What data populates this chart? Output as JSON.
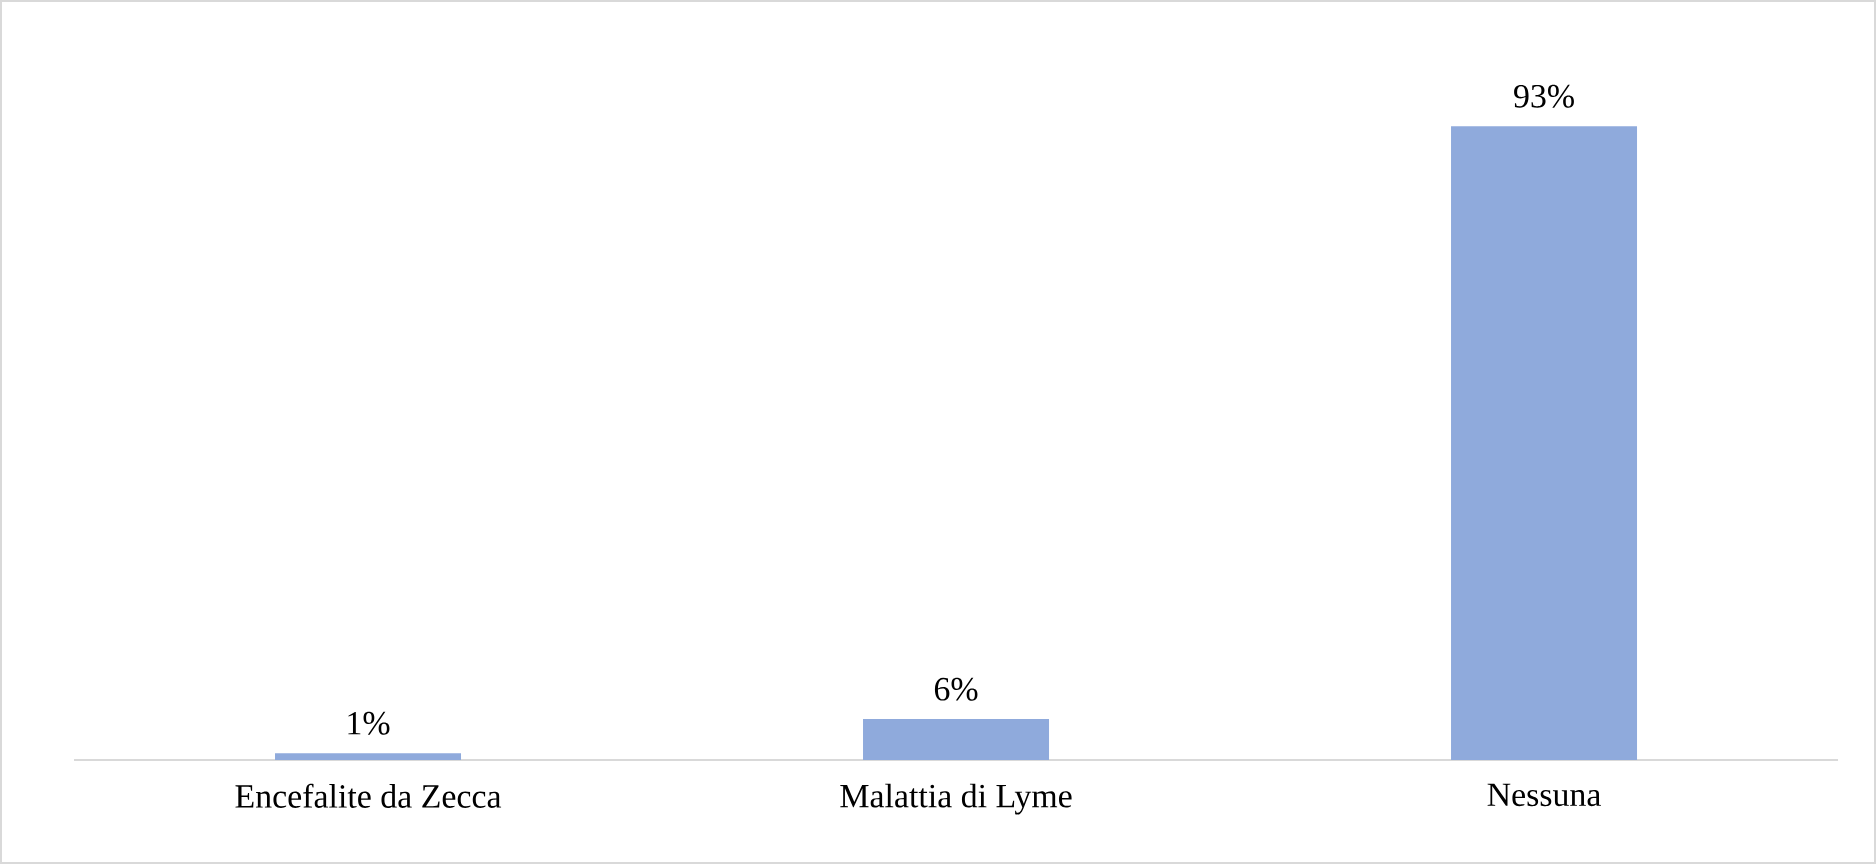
{
  "chart_data": {
    "type": "bar",
    "categories": [
      "Encefalite da Zecca",
      "Malattia di Lyme",
      "Nessuna"
    ],
    "values": [
      1,
      6,
      93
    ],
    "value_labels": [
      "1%",
      "6%",
      "93%"
    ],
    "color": "#8faadc"
  }
}
